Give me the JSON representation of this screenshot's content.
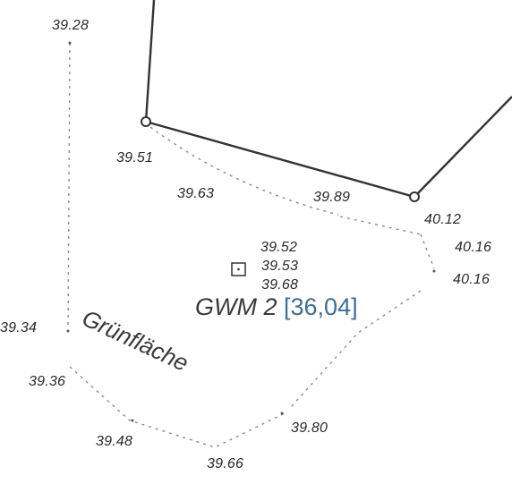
{
  "plan": {
    "well": {
      "name": "GWM 2",
      "value": "[36,04]",
      "value_color": "#3f6e97"
    },
    "area_label": "Grünfläche",
    "elevations": [
      "39.28",
      "39.51",
      "39.63",
      "39.89",
      "40.12",
      "40.16",
      "40.16",
      "39.52",
      "39.53",
      "39.68",
      "39.34",
      "39.36",
      "39.48",
      "39.66",
      "39.80"
    ]
  }
}
